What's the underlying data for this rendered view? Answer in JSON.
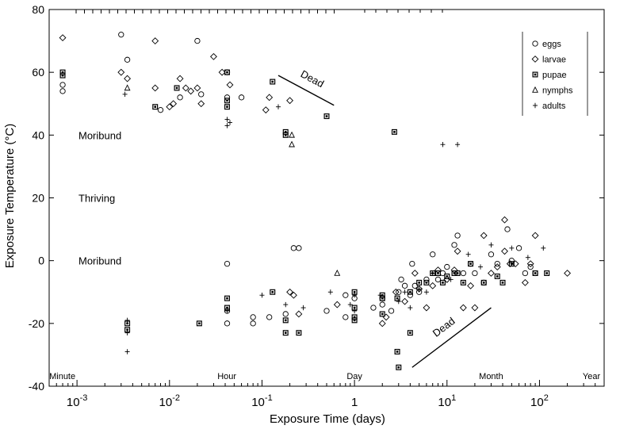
{
  "chart_data": {
    "type": "scatter",
    "xlabel": "Exposure Time (days)",
    "ylabel": "Exposure Temperature (°C)",
    "x_scale": "log",
    "xlim": [
      0.0005,
      500
    ],
    "ylim": [
      -40,
      80
    ],
    "x_ticks": [
      {
        "value": 0.001,
        "base": "10",
        "exp": "-3"
      },
      {
        "value": 0.01,
        "base": "10",
        "exp": "-2"
      },
      {
        "value": 0.1,
        "base": "10",
        "exp": "-1"
      },
      {
        "value": 1,
        "base": "1",
        "exp": ""
      },
      {
        "value": 10,
        "base": "10",
        "exp": "1"
      },
      {
        "value": 100,
        "base": "10",
        "exp": "2"
      }
    ],
    "y_ticks": [
      -40,
      -20,
      0,
      20,
      40,
      60,
      80
    ],
    "time_labels": [
      {
        "text": "Minute",
        "x": 0.000694
      },
      {
        "text": "Hour",
        "x": 0.0417
      },
      {
        "text": "Day",
        "x": 1
      },
      {
        "text": "Month",
        "x": 30
      },
      {
        "text": "Year",
        "x": 365
      }
    ],
    "zone_labels": [
      {
        "text": "Moribund",
        "y": 40
      },
      {
        "text": "Thriving",
        "y": 20
      },
      {
        "text": "Moribund",
        "y": 0
      }
    ],
    "dead_lines": [
      {
        "label": "Dead",
        "from": [
          0.15,
          59
        ],
        "to": [
          0.6,
          49.5
        ]
      },
      {
        "label": "Dead",
        "from": [
          4.2,
          -34
        ],
        "to": [
          30,
          -15
        ]
      }
    ],
    "legend": {
      "position": "top-right",
      "entries": [
        {
          "name": "eggs",
          "marker": "circle"
        },
        {
          "name": "larvae",
          "marker": "diamond"
        },
        {
          "name": "pupae",
          "marker": "square"
        },
        {
          "name": "nymphs",
          "marker": "triangle"
        },
        {
          "name": "adults",
          "marker": "plus"
        }
      ]
    },
    "series": [
      {
        "name": "eggs",
        "marker": "circle",
        "points": [
          [
            0.0007,
            56
          ],
          [
            0.0007,
            54
          ],
          [
            0.003,
            72
          ],
          [
            0.0035,
            64
          ],
          [
            0.008,
            48
          ],
          [
            0.013,
            52
          ],
          [
            0.02,
            70
          ],
          [
            0.022,
            53
          ],
          [
            0.042,
            60
          ],
          [
            0.042,
            52
          ],
          [
            0.042,
            -1
          ],
          [
            0.042,
            -16
          ],
          [
            0.042,
            -20
          ],
          [
            0.06,
            52
          ],
          [
            0.08,
            -18
          ],
          [
            0.08,
            -20
          ],
          [
            0.12,
            -18
          ],
          [
            0.18,
            -17
          ],
          [
            0.22,
            4
          ],
          [
            0.25,
            4
          ],
          [
            0.5,
            -16
          ],
          [
            0.8,
            -11
          ],
          [
            0.8,
            -18
          ],
          [
            1.0,
            -12
          ],
          [
            1.6,
            -15
          ],
          [
            2.0,
            -12
          ],
          [
            2.0,
            -14
          ],
          [
            2.5,
            -16
          ],
          [
            3.0,
            -10
          ],
          [
            3.2,
            -6
          ],
          [
            3.5,
            -8
          ],
          [
            4.0,
            -11
          ],
          [
            4.2,
            -1
          ],
          [
            4.5,
            -8
          ],
          [
            5.0,
            -10
          ],
          [
            6.0,
            -6
          ],
          [
            7.0,
            2
          ],
          [
            8.0,
            -6
          ],
          [
            9.0,
            -4
          ],
          [
            10,
            -2
          ],
          [
            12,
            5
          ],
          [
            13,
            8
          ],
          [
            15,
            -4
          ],
          [
            18,
            -1
          ],
          [
            20,
            -4
          ],
          [
            25,
            -7
          ],
          [
            30,
            2
          ],
          [
            35,
            -1
          ],
          [
            45,
            10
          ],
          [
            50,
            0
          ],
          [
            60,
            4
          ],
          [
            70,
            -4
          ],
          [
            80,
            -2
          ],
          [
            90,
            -4
          ]
        ]
      },
      {
        "name": "larvae",
        "marker": "diamond",
        "points": [
          [
            0.0007,
            71
          ],
          [
            0.003,
            60
          ],
          [
            0.0035,
            58
          ],
          [
            0.007,
            70
          ],
          [
            0.007,
            55
          ],
          [
            0.01,
            49
          ],
          [
            0.011,
            50
          ],
          [
            0.013,
            58
          ],
          [
            0.015,
            55
          ],
          [
            0.017,
            54
          ],
          [
            0.02,
            55
          ],
          [
            0.022,
            50
          ],
          [
            0.03,
            65
          ],
          [
            0.037,
            60
          ],
          [
            0.045,
            56
          ],
          [
            0.11,
            48
          ],
          [
            0.12,
            52
          ],
          [
            0.2,
            51
          ],
          [
            0.2,
            -10
          ],
          [
            0.22,
            -11
          ],
          [
            0.25,
            -17
          ],
          [
            0.65,
            -14
          ],
          [
            2.0,
            -20
          ],
          [
            2.2,
            -18
          ],
          [
            2.8,
            -10
          ],
          [
            3.5,
            -13
          ],
          [
            4.5,
            -4
          ],
          [
            5.0,
            -9
          ],
          [
            6.0,
            -15
          ],
          [
            7.0,
            -8
          ],
          [
            8.0,
            -3
          ],
          [
            10,
            -6
          ],
          [
            12,
            -3
          ],
          [
            13,
            3
          ],
          [
            15,
            -15
          ],
          [
            18,
            -8
          ],
          [
            20,
            -15
          ],
          [
            25,
            8
          ],
          [
            30,
            -4
          ],
          [
            35,
            -2
          ],
          [
            42,
            3
          ],
          [
            42,
            13
          ],
          [
            48,
            -1
          ],
          [
            55,
            -1
          ],
          [
            70,
            -7
          ],
          [
            80,
            -1
          ],
          [
            90,
            8
          ],
          [
            200,
            -4
          ]
        ]
      },
      {
        "name": "pupae",
        "marker": "square",
        "points": [
          [
            0.0007,
            60
          ],
          [
            0.0007,
            59
          ],
          [
            0.0035,
            -20
          ],
          [
            0.0035,
            -22
          ],
          [
            0.007,
            49
          ],
          [
            0.012,
            55
          ],
          [
            0.021,
            -20
          ],
          [
            0.042,
            60
          ],
          [
            0.042,
            51
          ],
          [
            0.042,
            49
          ],
          [
            0.042,
            -12
          ],
          [
            0.042,
            -15
          ],
          [
            0.13,
            57
          ],
          [
            0.13,
            -10
          ],
          [
            0.18,
            41
          ],
          [
            0.18,
            40
          ],
          [
            0.18,
            -19
          ],
          [
            0.18,
            -23
          ],
          [
            0.25,
            -23
          ],
          [
            0.5,
            46
          ],
          [
            1.0,
            -10
          ],
          [
            1.0,
            -15
          ],
          [
            1.0,
            -18
          ],
          [
            1.0,
            -19
          ],
          [
            2.0,
            -11
          ],
          [
            2.0,
            -12
          ],
          [
            2.0,
            -17
          ],
          [
            2.7,
            41
          ],
          [
            2.9,
            -12
          ],
          [
            2.9,
            -29
          ],
          [
            3.0,
            -34
          ],
          [
            4.0,
            -23
          ],
          [
            4.0,
            -10
          ],
          [
            5.0,
            -7
          ],
          [
            6.0,
            -7
          ],
          [
            7.0,
            -4
          ],
          [
            8.0,
            -4
          ],
          [
            9.0,
            -7
          ],
          [
            10,
            -5
          ],
          [
            12,
            -4
          ],
          [
            13,
            -4
          ],
          [
            15,
            -7
          ],
          [
            18,
            -1
          ],
          [
            25,
            -7
          ],
          [
            35,
            -5
          ],
          [
            40,
            -7
          ],
          [
            50,
            -1
          ],
          [
            90,
            -4
          ],
          [
            120,
            -4
          ]
        ]
      },
      {
        "name": "nymphs",
        "marker": "triangle",
        "points": [
          [
            0.0035,
            55
          ],
          [
            0.21,
            40
          ],
          [
            0.21,
            37
          ],
          [
            0.65,
            -4
          ]
        ]
      },
      {
        "name": "adults",
        "marker": "plus",
        "points": [
          [
            0.0033,
            53
          ],
          [
            0.0035,
            -19
          ],
          [
            0.0035,
            -23
          ],
          [
            0.0035,
            -29
          ],
          [
            0.042,
            45
          ],
          [
            0.042,
            43
          ],
          [
            0.042,
            -16
          ],
          [
            0.045,
            44
          ],
          [
            0.1,
            -11
          ],
          [
            0.15,
            49
          ],
          [
            0.18,
            -14
          ],
          [
            0.28,
            -15
          ],
          [
            0.55,
            -10
          ],
          [
            0.9,
            -14
          ],
          [
            1.0,
            -11
          ],
          [
            1.0,
            -16
          ],
          [
            1.9,
            -11
          ],
          [
            3.0,
            -13
          ],
          [
            3.5,
            -10
          ],
          [
            4.0,
            -15
          ],
          [
            5.0,
            -9
          ],
          [
            6.0,
            -10
          ],
          [
            7.0,
            -4
          ],
          [
            9,
            37
          ],
          [
            11,
            -6
          ],
          [
            13,
            37
          ],
          [
            17,
            2
          ],
          [
            23,
            -2
          ],
          [
            30,
            5
          ],
          [
            50,
            4
          ],
          [
            75,
            1
          ],
          [
            110,
            4
          ]
        ]
      }
    ]
  }
}
